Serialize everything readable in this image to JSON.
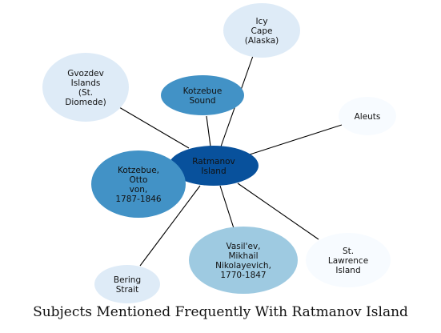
{
  "caption": "Subjects Mentioned Frequently With Ratmanov Island",
  "center": {
    "lines": [
      "Ratmanov",
      "Island"
    ],
    "color": "#08519c"
  },
  "nodes": [
    {
      "id": "icy-cape",
      "lines": [
        "Icy",
        "Cape",
        "(Alaska)"
      ],
      "color": "#deebf7"
    },
    {
      "id": "gvozdev-islands",
      "lines": [
        "Gvozdev",
        "Islands",
        "(St.",
        "Diomede)"
      ],
      "color": "#deebf7"
    },
    {
      "id": "kotzebue-sound",
      "lines": [
        "Kotzebue",
        "Sound"
      ],
      "color": "#4292c6"
    },
    {
      "id": "aleuts",
      "lines": [
        "Aleuts"
      ],
      "color": "#f7fbff"
    },
    {
      "id": "kotzebue-otto",
      "lines": [
        "Kotzebue,",
        "Otto",
        "von,",
        "1787-1846"
      ],
      "color": "#4292c6"
    },
    {
      "id": "st-lawrence-island",
      "lines": [
        "St.",
        "Lawrence",
        "Island"
      ],
      "color": "#f7fbff"
    },
    {
      "id": "vasilev-mikhail",
      "lines": [
        "Vasil'ev,",
        "Mikhail",
        "Nikolayevich,",
        "1770-1847"
      ],
      "color": "#9ecae1"
    },
    {
      "id": "bering-strait",
      "lines": [
        "Bering",
        "Strait"
      ],
      "color": "#deebf7"
    }
  ]
}
